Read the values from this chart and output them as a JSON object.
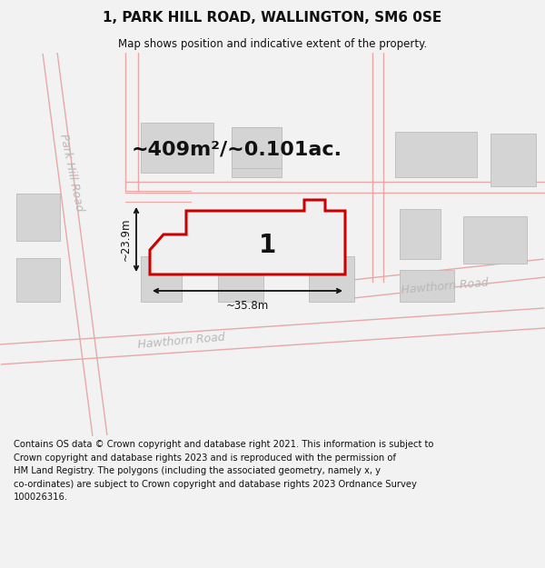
{
  "title": "1, PARK HILL ROAD, WALLINGTON, SM6 0SE",
  "subtitle": "Map shows position and indicative extent of the property.",
  "area_text": "~409m²/~0.101ac.",
  "dim_width": "~35.8m",
  "dim_height": "~23.9m",
  "plot_number": "1",
  "road_label_hawthorn_bottom": "Hawthorn Road",
  "road_label_hawthorn_right": "Hawthorn Road",
  "road_label_parkhill": "Park Hill Road",
  "footer_line1": "Contains OS data © Crown copyright and database right 2021. This information is subject to",
  "footer_line2": "Crown copyright and database rights 2023 and is reproduced with the permission of",
  "footer_line3": "HM Land Registry. The polygons (including the associated geometry, namely x, y",
  "footer_line4": "co-ordinates) are subject to Crown copyright and database rights 2023 Ordnance Survey",
  "footer_line5": "100026316.",
  "bg_color": "#f2f2f2",
  "map_bg": "#f5f5f5",
  "road_color": "#e8a8a8",
  "building_color": "#d4d4d4",
  "plot_outline_color": "#cc0000",
  "plot_fill_color": "#f0f0f0",
  "annotation_color": "#111111",
  "road_label_color": "#b8b8b8",
  "title_fontsize": 11,
  "subtitle_fontsize": 8.5,
  "area_fontsize": 16,
  "dim_fontsize": 8.5,
  "plot_num_fontsize": 20,
  "road_label_fontsize": 9,
  "footer_fontsize": 7.2
}
